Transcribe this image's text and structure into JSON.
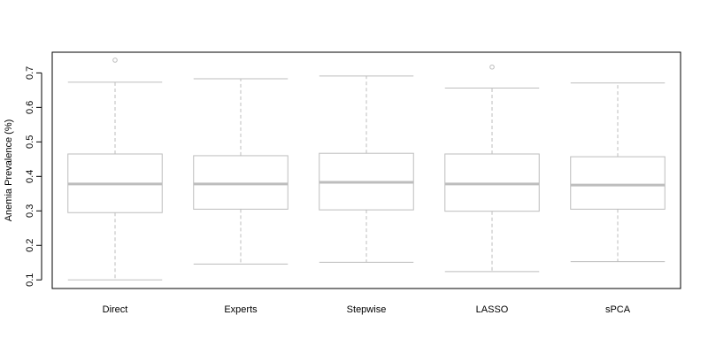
{
  "chart_data": {
    "type": "box",
    "title": "",
    "xlabel": "",
    "ylabel": "Anemia Prevalence (%)",
    "ylim": [
      0.075,
      0.76
    ],
    "yticks": [
      0.1,
      0.2,
      0.3,
      0.4,
      0.5,
      0.6,
      0.7
    ],
    "ytick_labels": [
      "0.1",
      "0.2",
      "0.3",
      "0.4",
      "0.5",
      "0.6",
      "0.7"
    ],
    "grid": false,
    "colors": {
      "box": "#bdbdbd",
      "median": "#bdbdbd",
      "axis": "#000000"
    },
    "categories": [
      "Direct",
      "Experts",
      "Stepwise",
      "LASSO",
      "sPCA"
    ],
    "boxes": [
      {
        "label": "Direct",
        "min": 0.1,
        "q1": 0.295,
        "median": 0.378,
        "q3": 0.465,
        "max": 0.673,
        "outliers": [
          0.737
        ]
      },
      {
        "label": "Experts",
        "min": 0.146,
        "q1": 0.305,
        "median": 0.378,
        "q3": 0.46,
        "max": 0.683,
        "outliers": []
      },
      {
        "label": "Stepwise",
        "min": 0.151,
        "q1": 0.303,
        "median": 0.383,
        "q3": 0.467,
        "max": 0.691,
        "outliers": []
      },
      {
        "label": "LASSO",
        "min": 0.124,
        "q1": 0.299,
        "median": 0.378,
        "q3": 0.465,
        "max": 0.656,
        "outliers": [
          0.717
        ]
      },
      {
        "label": "sPCA",
        "min": 0.153,
        "q1": 0.305,
        "median": 0.375,
        "q3": 0.457,
        "max": 0.671,
        "outliers": []
      }
    ]
  }
}
